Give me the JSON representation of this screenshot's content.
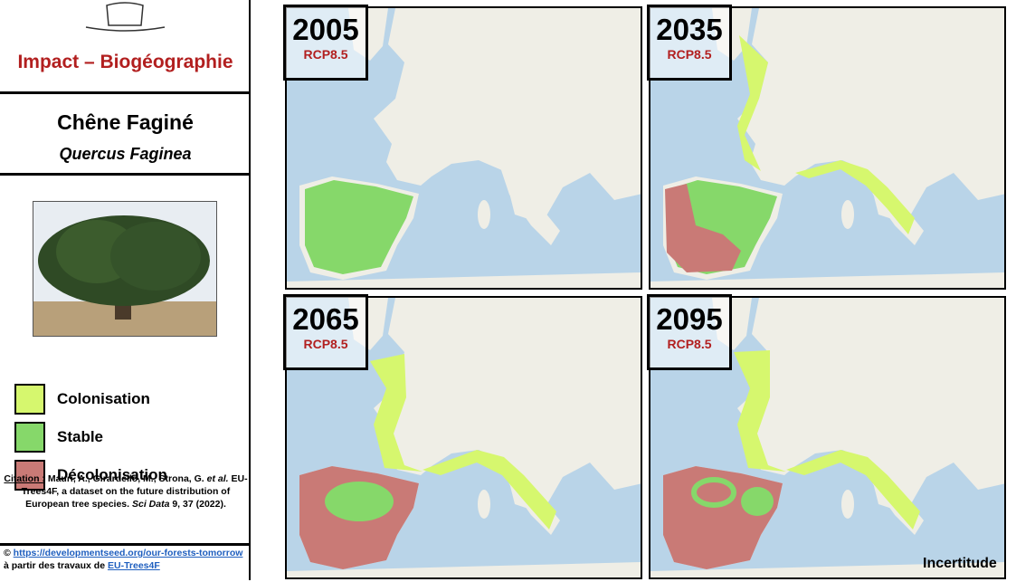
{
  "header": {
    "title": "Impact – Biogéographie"
  },
  "species": {
    "common_name": "Chêne Faginé",
    "latin_name": "Quercus Faginea"
  },
  "legend": [
    {
      "label": "Colonisation",
      "color": "#d6f76e"
    },
    {
      "label": "Stable",
      "color": "#86d86a"
    },
    {
      "label": "Décolonisation",
      "color": "#c97a76"
    }
  ],
  "citation": {
    "prefix": "Citation :",
    "authors": "Mauri, A., Girardello, M., Strona, G.",
    "et_al": "et al.",
    "title": "EU-Trees4F, a dataset on the future distribution of European tree species.",
    "journal": "Sci Data",
    "ref": "9, 37 (2022)."
  },
  "credits": {
    "symbol": "©",
    "link": "https://developmentseed.org/our-forests-tomorrow",
    "text": "à partir des travaux de",
    "source": "EU-Trees4F"
  },
  "maps": [
    {
      "year": "2005",
      "scenario": "RCP8.5"
    },
    {
      "year": "2035",
      "scenario": "RCP8.5"
    },
    {
      "year": "2065",
      "scenario": "RCP8.5"
    },
    {
      "year": "2095",
      "scenario": "RCP8.5"
    }
  ],
  "note": "Incertitude"
}
